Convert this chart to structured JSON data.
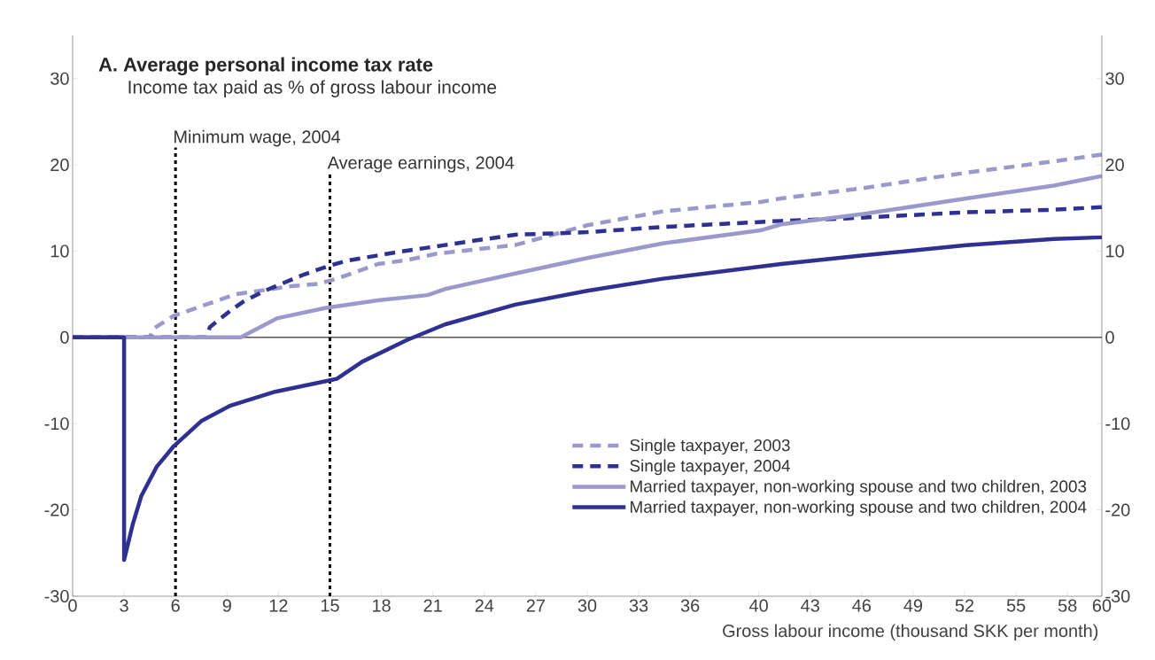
{
  "chart_data": {
    "type": "line",
    "title": "A. Average personal income tax rate",
    "subtitle": "Income tax paid as % of gross labour income",
    "xlabel": "Gross labour income (thousand SKK per month)",
    "xlim": [
      0,
      60
    ],
    "ylim": [
      -30,
      35
    ],
    "y2lim": [
      -30,
      35
    ],
    "xticks": [
      0,
      3,
      6,
      9,
      12,
      15,
      18,
      21,
      24,
      27,
      30,
      33,
      36,
      40,
      43,
      46,
      49,
      52,
      55,
      58,
      60
    ],
    "yticks": [
      -30,
      -20,
      -10,
      0,
      10,
      20,
      30
    ],
    "y2ticks": [
      -30,
      -20,
      -10,
      0,
      10,
      20,
      30
    ],
    "legend": "bottom right",
    "ref_lines": [
      {
        "axis": "y",
        "value": 0,
        "color": "#000000",
        "line_style": "solid"
      },
      {
        "axis": "x",
        "value": 6,
        "label": "Minimum wage, 2004",
        "color": "#000000",
        "line_style": "dotted"
      },
      {
        "axis": "x",
        "value": 15,
        "label": "Average earnings, 2004",
        "color": "#000000",
        "line_style": "dotted"
      }
    ],
    "series": [
      {
        "name": "Single taxpayer, 2003",
        "color": "#9999cc",
        "line_style": "dashed",
        "x": [
          0,
          4.5,
          4.7,
          5.9,
          9.5,
          12.6,
          14.3,
          15.4,
          17.8,
          19.6,
          21.2,
          25.8,
          30,
          34.4,
          40.1,
          41.3,
          46.1,
          52.1,
          57.2,
          60
        ],
        "values": [
          0,
          0,
          1,
          2.5,
          5,
          5.9,
          6.2,
          6.8,
          8.5,
          9.0,
          9.7,
          10.7,
          13.0,
          14.6,
          15.7,
          16.1,
          17.3,
          19.1,
          20.4,
          21.2
        ]
      },
      {
        "name": "Single taxpayer, 2004",
        "color": "#2e3192",
        "line_style": "dashed",
        "x": [
          0,
          7.8,
          8.0,
          9.2,
          10,
          11.2,
          13.5,
          14.8,
          16,
          19,
          21.7,
          25.8,
          30,
          34.4,
          41.3,
          45.2,
          52.1,
          57.2,
          60
        ],
        "values": [
          0,
          0,
          1.2,
          3.1,
          4.2,
          5.4,
          7.3,
          8.2,
          8.9,
          9.9,
          10.7,
          11.9,
          12.2,
          12.8,
          13.5,
          13.8,
          14.5,
          14.8,
          15.1
        ]
      },
      {
        "name": "Married taxpayer, non-working spouse and two children, 2003",
        "color": "#9999cc",
        "line_style": "solid",
        "x": [
          0,
          9.8,
          11.9,
          14.7,
          17.8,
          20.7,
          21.7,
          25.8,
          30,
          34.4,
          40.1,
          41.3,
          46.1,
          52.1,
          57.2,
          60
        ],
        "values": [
          0,
          0,
          2.2,
          3.4,
          4.3,
          4.9,
          5.6,
          7.4,
          9.2,
          10.9,
          12.4,
          13.1,
          14.3,
          16.1,
          17.6,
          18.7
        ]
      },
      {
        "name": "Married taxpayer, non-working spouse and two children, 2004",
        "color": "#2e3192",
        "line_style": "solid",
        "x": [
          0,
          3,
          3,
          3.5,
          4.0,
          4.9,
          5.9,
          7.5,
          9.2,
          11.8,
          14.7,
          15.4,
          16.9,
          19.5,
          21.7,
          25.8,
          30,
          34.4,
          41.3,
          46.1,
          52.1,
          57.2,
          60
        ],
        "values": [
          0,
          0,
          -25.8,
          -21.7,
          -18.4,
          -15.0,
          -12.6,
          -9.7,
          -7.9,
          -6.3,
          -5.1,
          -4.8,
          -2.8,
          -0.3,
          1.5,
          3.8,
          5.4,
          6.8,
          8.5,
          9.5,
          10.7,
          11.4,
          11.6
        ]
      }
    ]
  }
}
